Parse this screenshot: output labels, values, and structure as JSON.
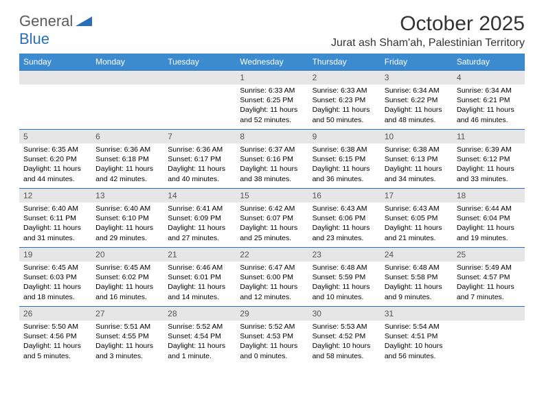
{
  "brand": {
    "part1": "General",
    "part2": "Blue"
  },
  "title": "October 2025",
  "location": "Jurat ash Sham'ah, Palestinian Territory",
  "colors": {
    "header_bg": "#3b8bce",
    "header_text": "#ffffff",
    "daynum_bg": "#e6e6e6",
    "border": "#2a6fb5",
    "brand_gray": "#5a5a5a",
    "brand_blue": "#2a6fb5"
  },
  "weekdays": [
    "Sunday",
    "Monday",
    "Tuesday",
    "Wednesday",
    "Thursday",
    "Friday",
    "Saturday"
  ],
  "weeks": [
    [
      null,
      null,
      null,
      {
        "n": "1",
        "sr": "6:33 AM",
        "ss": "6:25 PM",
        "dl": "11 hours and 52 minutes."
      },
      {
        "n": "2",
        "sr": "6:33 AM",
        "ss": "6:23 PM",
        "dl": "11 hours and 50 minutes."
      },
      {
        "n": "3",
        "sr": "6:34 AM",
        "ss": "6:22 PM",
        "dl": "11 hours and 48 minutes."
      },
      {
        "n": "4",
        "sr": "6:34 AM",
        "ss": "6:21 PM",
        "dl": "11 hours and 46 minutes."
      }
    ],
    [
      {
        "n": "5",
        "sr": "6:35 AM",
        "ss": "6:20 PM",
        "dl": "11 hours and 44 minutes."
      },
      {
        "n": "6",
        "sr": "6:36 AM",
        "ss": "6:18 PM",
        "dl": "11 hours and 42 minutes."
      },
      {
        "n": "7",
        "sr": "6:36 AM",
        "ss": "6:17 PM",
        "dl": "11 hours and 40 minutes."
      },
      {
        "n": "8",
        "sr": "6:37 AM",
        "ss": "6:16 PM",
        "dl": "11 hours and 38 minutes."
      },
      {
        "n": "9",
        "sr": "6:38 AM",
        "ss": "6:15 PM",
        "dl": "11 hours and 36 minutes."
      },
      {
        "n": "10",
        "sr": "6:38 AM",
        "ss": "6:13 PM",
        "dl": "11 hours and 34 minutes."
      },
      {
        "n": "11",
        "sr": "6:39 AM",
        "ss": "6:12 PM",
        "dl": "11 hours and 33 minutes."
      }
    ],
    [
      {
        "n": "12",
        "sr": "6:40 AM",
        "ss": "6:11 PM",
        "dl": "11 hours and 31 minutes."
      },
      {
        "n": "13",
        "sr": "6:40 AM",
        "ss": "6:10 PM",
        "dl": "11 hours and 29 minutes."
      },
      {
        "n": "14",
        "sr": "6:41 AM",
        "ss": "6:09 PM",
        "dl": "11 hours and 27 minutes."
      },
      {
        "n": "15",
        "sr": "6:42 AM",
        "ss": "6:07 PM",
        "dl": "11 hours and 25 minutes."
      },
      {
        "n": "16",
        "sr": "6:43 AM",
        "ss": "6:06 PM",
        "dl": "11 hours and 23 minutes."
      },
      {
        "n": "17",
        "sr": "6:43 AM",
        "ss": "6:05 PM",
        "dl": "11 hours and 21 minutes."
      },
      {
        "n": "18",
        "sr": "6:44 AM",
        "ss": "6:04 PM",
        "dl": "11 hours and 19 minutes."
      }
    ],
    [
      {
        "n": "19",
        "sr": "6:45 AM",
        "ss": "6:03 PM",
        "dl": "11 hours and 18 minutes."
      },
      {
        "n": "20",
        "sr": "6:45 AM",
        "ss": "6:02 PM",
        "dl": "11 hours and 16 minutes."
      },
      {
        "n": "21",
        "sr": "6:46 AM",
        "ss": "6:01 PM",
        "dl": "11 hours and 14 minutes."
      },
      {
        "n": "22",
        "sr": "6:47 AM",
        "ss": "6:00 PM",
        "dl": "11 hours and 12 minutes."
      },
      {
        "n": "23",
        "sr": "6:48 AM",
        "ss": "5:59 PM",
        "dl": "11 hours and 10 minutes."
      },
      {
        "n": "24",
        "sr": "6:48 AM",
        "ss": "5:58 PM",
        "dl": "11 hours and 9 minutes."
      },
      {
        "n": "25",
        "sr": "5:49 AM",
        "ss": "4:57 PM",
        "dl": "11 hours and 7 minutes."
      }
    ],
    [
      {
        "n": "26",
        "sr": "5:50 AM",
        "ss": "4:56 PM",
        "dl": "11 hours and 5 minutes."
      },
      {
        "n": "27",
        "sr": "5:51 AM",
        "ss": "4:55 PM",
        "dl": "11 hours and 3 minutes."
      },
      {
        "n": "28",
        "sr": "5:52 AM",
        "ss": "4:54 PM",
        "dl": "11 hours and 1 minute."
      },
      {
        "n": "29",
        "sr": "5:52 AM",
        "ss": "4:53 PM",
        "dl": "11 hours and 0 minutes."
      },
      {
        "n": "30",
        "sr": "5:53 AM",
        "ss": "4:52 PM",
        "dl": "10 hours and 58 minutes."
      },
      {
        "n": "31",
        "sr": "5:54 AM",
        "ss": "4:51 PM",
        "dl": "10 hours and 56 minutes."
      },
      null
    ]
  ],
  "labels": {
    "sunrise": "Sunrise:",
    "sunset": "Sunset:",
    "daylight": "Daylight:"
  }
}
